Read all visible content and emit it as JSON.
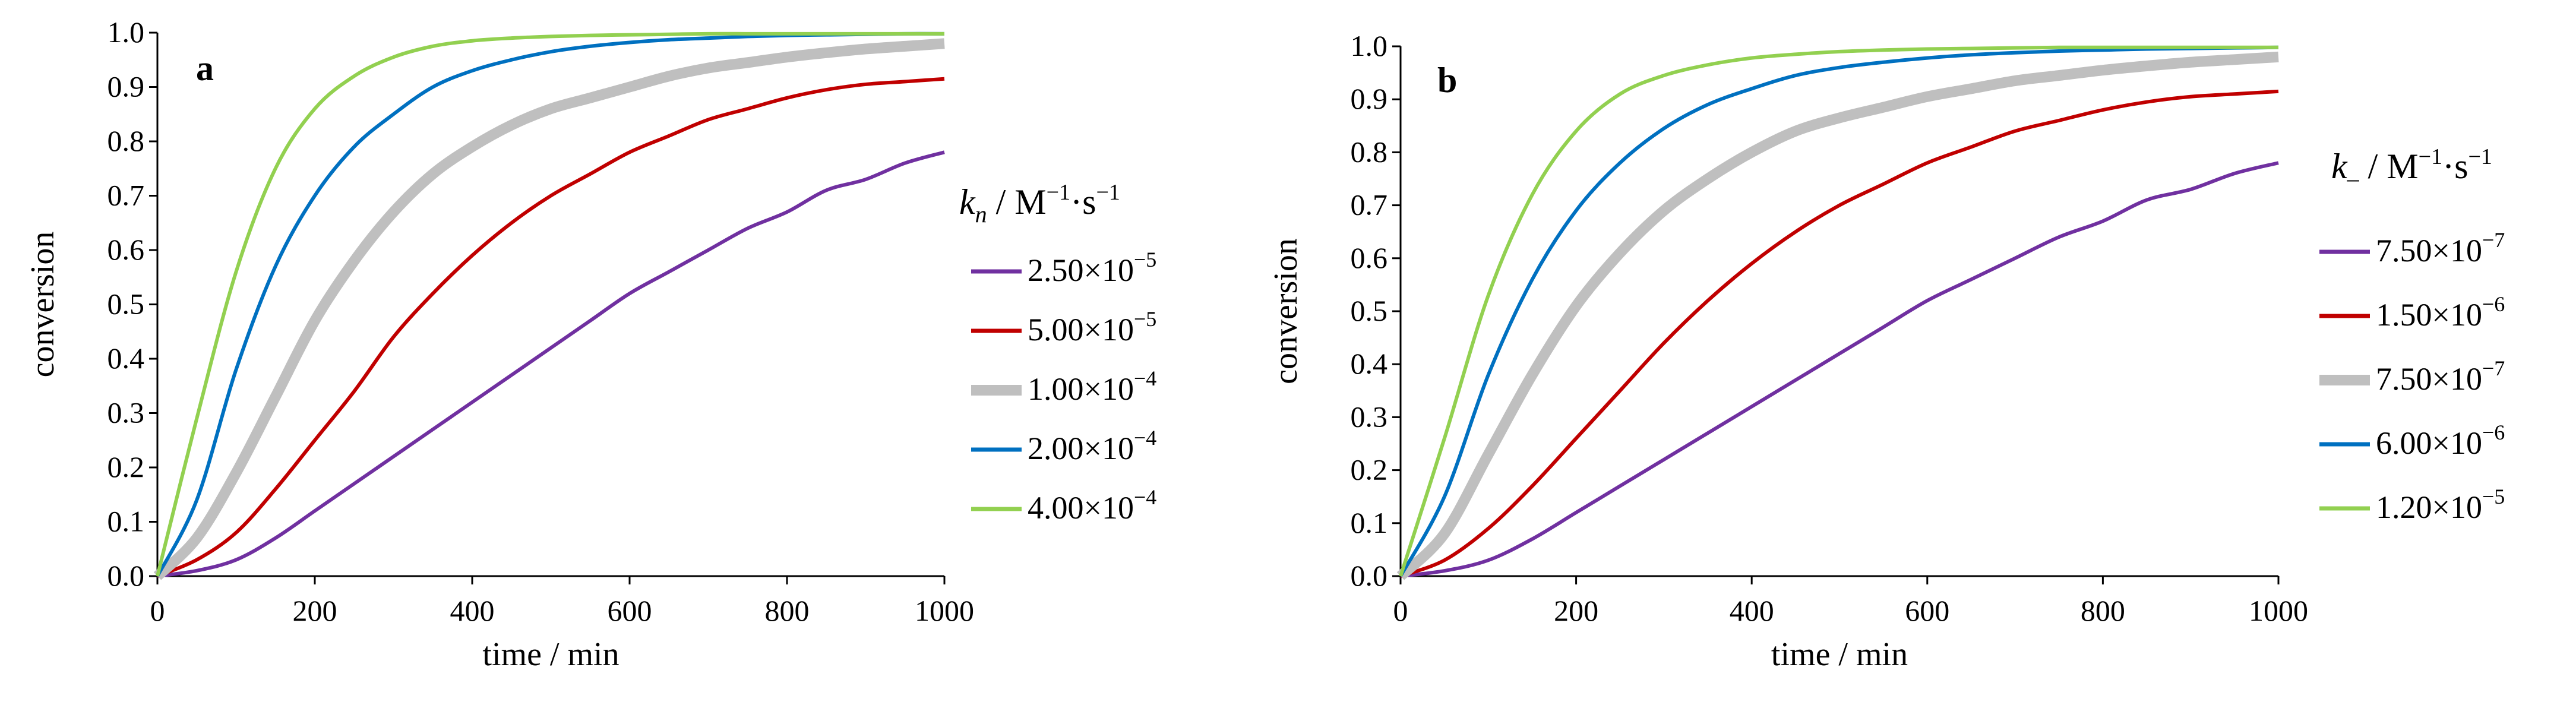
{
  "chart_data": [
    {
      "type": "line",
      "panel_label": "a",
      "xlabel": "time / min",
      "ylabel": "conversion",
      "xlim": [
        0,
        1000
      ],
      "ylim": [
        0,
        1.0
      ],
      "xticks": [
        "0",
        "200",
        "400",
        "600",
        "800",
        "1000"
      ],
      "yticks": [
        "0.0",
        "0.1",
        "0.2",
        "0.3",
        "0.4",
        "0.5",
        "0.6",
        "0.7",
        "0.8",
        "0.9",
        "1.0"
      ],
      "legend_title": {
        "symbol": "k",
        "subscript": "n",
        "units": " / M",
        "exp1": "−1",
        "mid": "·s",
        "exp2": "−1"
      },
      "legend_position": "right",
      "x": [
        0,
        50,
        100,
        150,
        200,
        250,
        300,
        350,
        400,
        450,
        500,
        550,
        600,
        650,
        700,
        750,
        800,
        850,
        900,
        950,
        1000
      ],
      "series": [
        {
          "name": "2.50×10",
          "exp": "−5",
          "color": "#7030A0",
          "thick": false,
          "values": [
            0,
            0.01,
            0.03,
            0.07,
            0.12,
            0.17,
            0.22,
            0.27,
            0.32,
            0.37,
            0.42,
            0.47,
            0.52,
            0.56,
            0.6,
            0.64,
            0.67,
            0.71,
            0.73,
            0.76,
            0.78
          ]
        },
        {
          "name": "5.00×10",
          "exp": "−5",
          "color": "#C00000",
          "thick": false,
          "values": [
            0,
            0.03,
            0.08,
            0.16,
            0.25,
            0.34,
            0.44,
            0.52,
            0.59,
            0.65,
            0.7,
            0.74,
            0.78,
            0.81,
            0.84,
            0.86,
            0.88,
            0.895,
            0.905,
            0.91,
            0.915
          ]
        },
        {
          "name": "1.00×10",
          "exp": "−4",
          "color": "#BFBFBF",
          "thick": true,
          "values": [
            0,
            0.07,
            0.19,
            0.33,
            0.47,
            0.58,
            0.67,
            0.74,
            0.79,
            0.83,
            0.86,
            0.88,
            0.9,
            0.92,
            0.935,
            0.945,
            0.955,
            0.963,
            0.97,
            0.975,
            0.98
          ]
        },
        {
          "name": "2.00×10",
          "exp": "−4",
          "color": "#0070C0",
          "thick": false,
          "values": [
            0,
            0.14,
            0.38,
            0.57,
            0.7,
            0.79,
            0.85,
            0.9,
            0.93,
            0.95,
            0.965,
            0.975,
            0.982,
            0.987,
            0.99,
            0.993,
            0.995,
            0.996,
            0.997,
            0.998,
            0.998
          ]
        },
        {
          "name": "4.00×10",
          "exp": "−4",
          "color": "#92D050",
          "thick": false,
          "values": [
            0,
            0.29,
            0.56,
            0.75,
            0.86,
            0.92,
            0.955,
            0.975,
            0.985,
            0.99,
            0.993,
            0.995,
            0.996,
            0.997,
            0.998,
            0.998,
            0.998,
            0.998,
            0.998,
            0.998,
            0.998
          ]
        }
      ]
    },
    {
      "type": "line",
      "panel_label": "b",
      "xlabel": "time / min",
      "ylabel": "conversion",
      "xlim": [
        0,
        1000
      ],
      "ylim": [
        0,
        1.0
      ],
      "xticks": [
        "0",
        "200",
        "400",
        "600",
        "800",
        "1000"
      ],
      "yticks": [
        "0.0",
        "0.1",
        "0.2",
        "0.3",
        "0.4",
        "0.5",
        "0.6",
        "0.7",
        "0.8",
        "0.9",
        "1.0"
      ],
      "legend_title": {
        "symbol": "k",
        "subscript": "–",
        "units": " / M",
        "exp1": "−1",
        "mid": "·s",
        "exp2": "−1"
      },
      "legend_position": "right",
      "x": [
        0,
        50,
        100,
        150,
        200,
        250,
        300,
        350,
        400,
        450,
        500,
        550,
        600,
        650,
        700,
        750,
        800,
        850,
        900,
        950,
        1000
      ],
      "series": [
        {
          "name": "7.50×10",
          "exp": "−7",
          "color": "#7030A0",
          "thick": false,
          "values": [
            0,
            0.01,
            0.03,
            0.07,
            0.12,
            0.17,
            0.22,
            0.27,
            0.32,
            0.37,
            0.42,
            0.47,
            0.52,
            0.56,
            0.6,
            0.64,
            0.67,
            0.71,
            0.73,
            0.76,
            0.78
          ]
        },
        {
          "name": "1.50×10",
          "exp": "−6",
          "color": "#C00000",
          "thick": false,
          "values": [
            0,
            0.03,
            0.09,
            0.17,
            0.26,
            0.35,
            0.44,
            0.52,
            0.59,
            0.65,
            0.7,
            0.74,
            0.78,
            0.81,
            0.84,
            0.86,
            0.88,
            0.895,
            0.905,
            0.91,
            0.915
          ]
        },
        {
          "name": "7.50×10",
          "exp": "−7",
          "color": "#BFBFBF",
          "thick": true,
          "values": [
            0,
            0.08,
            0.23,
            0.38,
            0.51,
            0.61,
            0.69,
            0.75,
            0.8,
            0.84,
            0.865,
            0.885,
            0.905,
            0.92,
            0.935,
            0.945,
            0.955,
            0.963,
            0.97,
            0.975,
            0.98
          ]
        },
        {
          "name": "6.00×10",
          "exp": "−6",
          "color": "#0070C0",
          "thick": false,
          "values": [
            0,
            0.15,
            0.38,
            0.56,
            0.69,
            0.78,
            0.845,
            0.89,
            0.92,
            0.945,
            0.96,
            0.97,
            0.978,
            0.984,
            0.988,
            0.991,
            0.993,
            0.995,
            0.996,
            0.997,
            0.998
          ]
        },
        {
          "name": "1.20×10",
          "exp": "−5",
          "color": "#92D050",
          "thick": false,
          "values": [
            0,
            0.26,
            0.53,
            0.72,
            0.84,
            0.91,
            0.945,
            0.965,
            0.978,
            0.985,
            0.99,
            0.993,
            0.995,
            0.996,
            0.997,
            0.998,
            0.998,
            0.998,
            0.998,
            0.998,
            0.998
          ]
        }
      ]
    }
  ]
}
